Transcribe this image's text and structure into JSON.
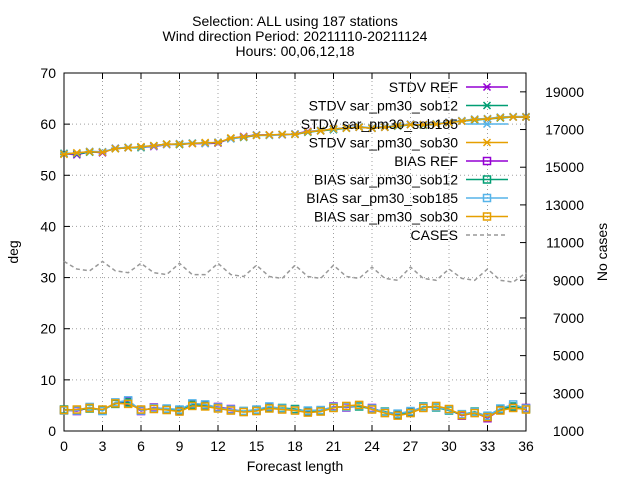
{
  "chart_data": {
    "type": "line",
    "title_lines": [
      "Selection: ALL using   187 stations",
      "Wind direction   Period: 20211110-20211124",
      "Hours: 00,06,12,18"
    ],
    "xlabel": "Forecast length",
    "ylabel": "deg",
    "y2label": "No cases",
    "xlim": [
      0,
      36
    ],
    "ylim": [
      0,
      70
    ],
    "y2lim": [
      1000,
      20000
    ],
    "x_ticks": [
      0,
      3,
      6,
      9,
      12,
      15,
      18,
      21,
      24,
      27,
      30,
      33,
      36
    ],
    "y_ticks": [
      0,
      10,
      20,
      30,
      40,
      50,
      60,
      70
    ],
    "y2_ticks": [
      1000,
      3000,
      5000,
      7000,
      9000,
      11000,
      13000,
      15000,
      17000,
      19000
    ],
    "grid": true,
    "legend_position": "top-right",
    "x": [
      0,
      1,
      2,
      3,
      4,
      5,
      6,
      7,
      8,
      9,
      10,
      11,
      12,
      13,
      14,
      15,
      16,
      17,
      18,
      19,
      20,
      21,
      22,
      23,
      24,
      25,
      26,
      27,
      28,
      29,
      30,
      31,
      32,
      33,
      34,
      35,
      36
    ],
    "series": [
      {
        "name": "STDV REF",
        "axis": "left",
        "color": "#9400d3",
        "marker": "x",
        "dash": "solid",
        "values": [
          54.2,
          54.0,
          54.6,
          54.4,
          55.3,
          55.4,
          55.5,
          55.6,
          56.0,
          56.1,
          56.2,
          56.2,
          56.3,
          57.2,
          57.6,
          57.9,
          57.9,
          57.9,
          58.1,
          58.6,
          58.7,
          59.0,
          59.3,
          59.4,
          59.2,
          59.4,
          59.7,
          60.0,
          59.9,
          60.0,
          60.4,
          60.6,
          60.9,
          61.0,
          61.3,
          61.4,
          61.4
        ]
      },
      {
        "name": "STDV sar_pm30_sob12",
        "axis": "left",
        "color": "#009e73",
        "marker": "x",
        "dash": "solid",
        "values": [
          54.3,
          54.2,
          54.5,
          54.6,
          55.2,
          55.4,
          55.4,
          55.8,
          56.1,
          56.0,
          56.3,
          56.3,
          56.4,
          57.2,
          57.4,
          57.8,
          57.8,
          58.0,
          58.0,
          58.4,
          58.7,
          58.9,
          59.2,
          59.4,
          59.2,
          59.4,
          59.6,
          59.9,
          59.8,
          60.0,
          60.3,
          60.6,
          60.8,
          61.0,
          61.2,
          61.4,
          61.4
        ]
      },
      {
        "name": "STDV sar_pm30_sob185",
        "axis": "left",
        "color": "#56b4e9",
        "marker": "x",
        "dash": "solid",
        "values": [
          54.2,
          54.3,
          54.7,
          54.6,
          55.3,
          55.5,
          55.5,
          55.7,
          56.0,
          56.2,
          56.3,
          56.2,
          56.5,
          57.1,
          57.5,
          57.9,
          57.8,
          57.9,
          58.1,
          58.5,
          58.8,
          59.0,
          59.3,
          59.5,
          59.3,
          59.5,
          59.8,
          60.0,
          59.9,
          60.1,
          60.4,
          60.7,
          61.0,
          61.1,
          61.4,
          61.5,
          61.5
        ]
      },
      {
        "name": "STDV sar_pm30_sob30",
        "axis": "left",
        "color": "#e69f00",
        "marker": "x",
        "dash": "solid",
        "values": [
          54.1,
          54.4,
          54.6,
          54.5,
          55.2,
          55.4,
          55.6,
          55.8,
          56.1,
          56.1,
          56.2,
          56.4,
          56.4,
          57.3,
          57.5,
          57.8,
          57.9,
          58.0,
          58.0,
          58.5,
          58.7,
          59.1,
          59.2,
          59.4,
          59.2,
          59.4,
          59.7,
          59.9,
          59.9,
          60.0,
          60.3,
          60.6,
          60.9,
          61.0,
          61.3,
          61.4,
          61.4
        ]
      },
      {
        "name": "BIAS REF",
        "axis": "left",
        "color": "#9400d3",
        "marker": "square",
        "dash": "solid",
        "values": [
          4.1,
          3.9,
          4.6,
          4.0,
          5.5,
          5.8,
          3.9,
          4.6,
          4.3,
          4.0,
          5.2,
          5.0,
          4.7,
          4.3,
          3.8,
          4.0,
          4.6,
          4.3,
          4.2,
          3.8,
          3.9,
          4.8,
          4.6,
          4.9,
          4.5,
          3.6,
          3.2,
          3.7,
          4.6,
          4.8,
          4.2,
          3.0,
          3.6,
          2.5,
          4.1,
          4.6,
          4.5
        ]
      },
      {
        "name": "BIAS sar_pm30_sob12",
        "axis": "left",
        "color": "#009e73",
        "marker": "square",
        "dash": "solid",
        "values": [
          4.2,
          4.1,
          4.4,
          4.1,
          5.3,
          5.6,
          4.1,
          4.4,
          4.2,
          4.1,
          5.1,
          4.9,
          4.5,
          4.1,
          3.9,
          4.1,
          4.5,
          4.5,
          4.3,
          3.9,
          4.0,
          4.6,
          4.8,
          4.8,
          4.3,
          3.8,
          3.3,
          3.6,
          4.8,
          4.6,
          4.0,
          3.2,
          3.8,
          2.8,
          4.3,
          4.8,
          4.3
        ]
      },
      {
        "name": "BIAS sar_pm30_sob185",
        "axis": "left",
        "color": "#56b4e9",
        "marker": "square",
        "dash": "solid",
        "values": [
          4.0,
          4.0,
          4.7,
          3.9,
          5.6,
          6.0,
          4.0,
          4.5,
          4.4,
          4.2,
          5.4,
          5.2,
          4.6,
          4.2,
          3.9,
          4.2,
          4.8,
          4.4,
          4.1,
          4.0,
          4.1,
          4.7,
          4.7,
          5.0,
          4.4,
          3.7,
          3.4,
          3.9,
          4.7,
          4.7,
          4.1,
          3.3,
          3.7,
          3.0,
          4.4,
          5.2,
          4.4
        ]
      },
      {
        "name": "BIAS sar_pm30_sob30",
        "axis": "left",
        "color": "#e69f00",
        "marker": "square",
        "dash": "solid",
        "values": [
          4.1,
          4.2,
          4.5,
          4.2,
          5.4,
          5.3,
          4.2,
          4.3,
          4.1,
          3.8,
          4.9,
          4.8,
          4.4,
          4.0,
          3.7,
          3.9,
          4.4,
          4.2,
          4.0,
          3.6,
          3.8,
          4.5,
          4.9,
          5.1,
          4.2,
          3.5,
          3.0,
          3.5,
          4.5,
          4.9,
          4.3,
          3.1,
          3.5,
          2.7,
          4.0,
          4.5,
          4.2
        ]
      },
      {
        "name": "CASES",
        "axis": "right",
        "color": "#999999",
        "marker": "none",
        "dash": "dashed",
        "values": [
          10000,
          9600,
          9500,
          10000,
          9500,
          9400,
          9900,
          9400,
          9300,
          9900,
          9300,
          9300,
          9900,
          9300,
          9200,
          9800,
          9200,
          9100,
          9800,
          9200,
          9100,
          9800,
          9200,
          9100,
          9700,
          9100,
          9000,
          9700,
          9100,
          9000,
          9600,
          9100,
          9000,
          9600,
          9000,
          8900,
          9400
        ]
      }
    ]
  }
}
